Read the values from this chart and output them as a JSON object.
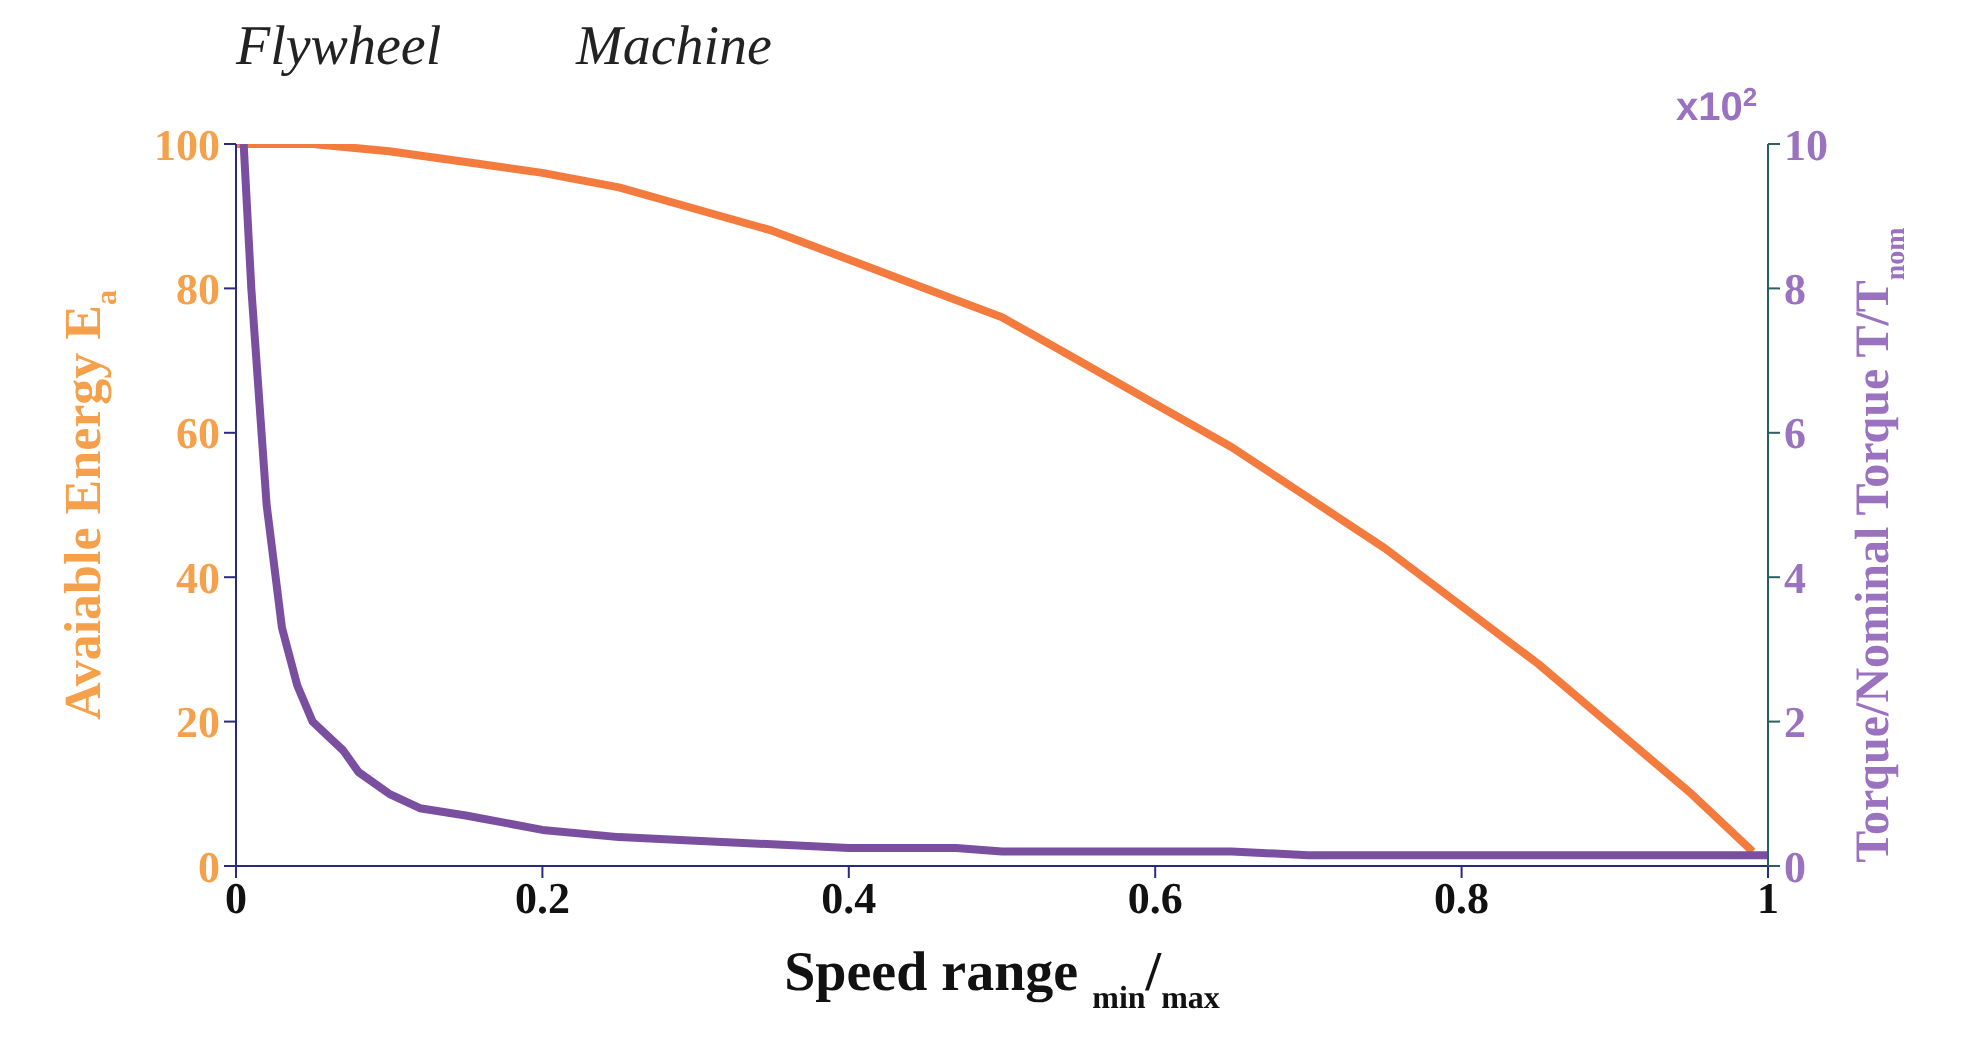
{
  "chart_data": {
    "type": "line",
    "xlabel": "Speed range $_{min}$/$_{max}$",
    "ylabel": "Avaiable Energy E$_{a}$",
    "y2label": "Torque/Nominal Torque  T/T$_{nom}$",
    "annotations": [
      "Flywheel",
      "Machine",
      "x10$^{2}$"
    ],
    "xlim": [
      0,
      1
    ],
    "xticks": [
      0,
      0.2,
      0.4,
      0.6,
      0.8,
      1
    ],
    "ylim": [
      0,
      100
    ],
    "yticks": [
      0,
      20,
      40,
      60,
      80,
      100
    ],
    "y2lim": [
      0,
      10
    ],
    "y2ticks": [
      0,
      2,
      4,
      6,
      8,
      10
    ],
    "grid": false,
    "marker": "none",
    "line_style": "solid",
    "series": [
      {
        "color": "#f47b3e",
        "x": [
          0,
          0.05,
          0.1,
          0.15,
          0.2,
          0.25,
          0.3,
          0.35,
          0.4,
          0.45,
          0.5,
          0.55,
          0.6,
          0.65,
          0.7,
          0.75,
          0.8,
          0.85,
          0.9,
          0.95,
          0.98,
          0.99
        ],
        "values": [
          100,
          100,
          99,
          97.5,
          96,
          94,
          91,
          88,
          84,
          80,
          76,
          70,
          64,
          58,
          51,
          44,
          36,
          28,
          19,
          10,
          4,
          2
        ]
      },
      {
        "color": "#7a4fa0",
        "axis": "y2",
        "x": [
          0.005,
          0.01,
          0.02,
          0.03,
          0.04,
          0.05,
          0.07,
          0.08,
          0.1,
          0.12,
          0.15,
          0.2,
          0.25,
          0.3,
          0.35,
          0.4,
          0.47,
          0.5,
          0.65,
          0.7,
          1
        ],
        "values": [
          10,
          8,
          5,
          3.3,
          2.5,
          2,
          1.6,
          1.3,
          1,
          0.8,
          0.7,
          0.5,
          0.4,
          0.35,
          0.3,
          0.25,
          0.25,
          0.2,
          0.2,
          0.15,
          0.15
        ]
      }
    ]
  }
}
